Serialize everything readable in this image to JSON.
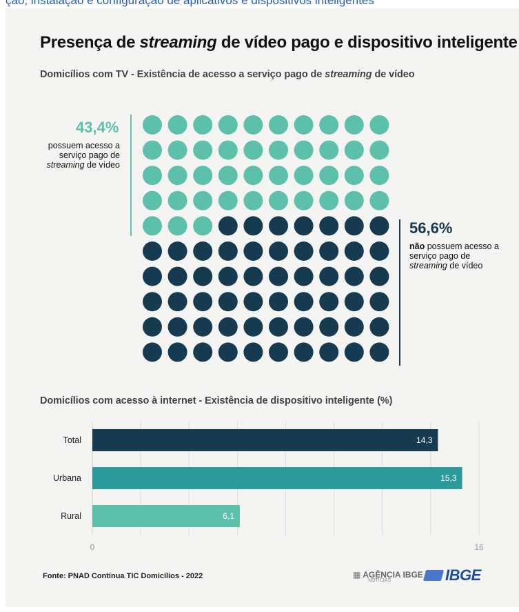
{
  "page": {
    "top_strip_text": "ção, instalação e configuração de aplicativos e dispositivos inteligentes",
    "title_a": "Presença de ",
    "title_em": "streaming",
    "title_b": " de vídeo pago e dispositivo inteligente",
    "subtitle1_a": "Domicílios com TV - Existência de acesso a serviço pago de ",
    "subtitle1_em": "streaming",
    "subtitle1_b": " de vídeo",
    "subtitle2": "Domicílios com acesso à internet - Existência de dispositivo inteligente (%)",
    "source": "Fonte: PNAD Contínua TIC Domicílios - 2022",
    "agencia_logo": "AGÊNCIA IBGE",
    "agencia_sub": "NOTÍCIAS",
    "ibge_logo": "IBGE"
  },
  "waffle": {
    "left": {
      "pct": "43,4%",
      "text_a": "possuem acesso a serviço pago de ",
      "text_em": "streaming",
      "text_b": " de vídeo"
    },
    "right": {
      "pct": "56,6%",
      "text_bold": "não",
      "text_a": " possuem acesso a serviço pago de ",
      "text_em": "streaming",
      "text_b": " de vídeo"
    }
  },
  "colors": {
    "teal_light": "#5cc0ab",
    "teal_mid": "#2a9a9b",
    "navy": "#163a4f",
    "background": "#f4f4f2"
  },
  "chart_data": [
    {
      "type": "waffle",
      "total": 100,
      "filled": 43,
      "series": [
        {
          "name": "possuem acesso",
          "value": 43.4
        },
        {
          "name": "não possuem acesso",
          "value": 56.6
        }
      ]
    },
    {
      "type": "bar",
      "orientation": "horizontal",
      "categories": [
        "Total",
        "Urbana",
        "Rural"
      ],
      "values": [
        14.3,
        15.3,
        6.1
      ],
      "value_labels": [
        "14,3",
        "15,3",
        "6,1"
      ],
      "xlim": [
        0,
        16
      ],
      "x_ticks": [
        "0",
        "16"
      ],
      "grid": true
    }
  ]
}
